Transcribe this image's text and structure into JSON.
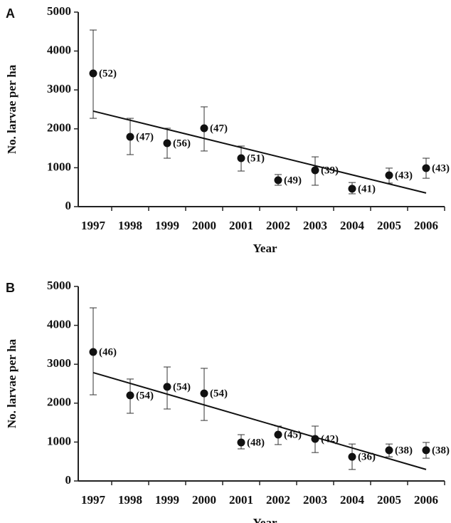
{
  "chart_data": [
    {
      "type": "errorbar",
      "panel_label": "A",
      "y_label": "No. larvae per ha",
      "x_label": "Year",
      "categories": [
        "1997",
        "1998",
        "1999",
        "2000",
        "2001",
        "2002",
        "2003",
        "2004",
        "2005",
        "2006"
      ],
      "values": [
        3425,
        1795,
        1630,
        2015,
        1245,
        680,
        935,
        460,
        805,
        990
      ],
      "lower": [
        2270,
        1337,
        1245,
        1430,
        915,
        550,
        550,
        330,
        605,
        730
      ],
      "upper": [
        4540,
        2270,
        2015,
        2565,
        1557,
        825,
        1280,
        620,
        990,
        1245
      ],
      "n_labels": [
        "(52)",
        "(47)",
        "(56)",
        "(47)",
        "(51)",
        "(49)",
        "(39)",
        "(41)",
        "(43)",
        "(43)"
      ],
      "trendline": [
        2455,
        350
      ],
      "color": "#111111",
      "ylim": [
        0,
        5000
      ],
      "yticks": [
        0,
        1000,
        2000,
        3000,
        4000,
        5000
      ]
    },
    {
      "type": "errorbar",
      "panel_label": "B",
      "y_label": "No. larvae per ha",
      "x_label": "Year",
      "categories": [
        "1997",
        "1998",
        "1999",
        "2000",
        "2001",
        "2002",
        "2003",
        "2004",
        "2005",
        "2006"
      ],
      "values": [
        3315,
        2200,
        2420,
        2250,
        990,
        1190,
        1080,
        620,
        790,
        790
      ],
      "lower": [
        2215,
        1740,
        1850,
        1555,
        825,
        935,
        730,
        295,
        620,
        585
      ],
      "upper": [
        4450,
        2620,
        2930,
        2895,
        1190,
        1410,
        1410,
        950,
        950,
        990
      ],
      "n_labels": [
        "(46)",
        "(54)",
        "(54)",
        "(54)",
        "(48)",
        "(45)",
        "(42)",
        "(36)",
        "(38)",
        "(38)"
      ],
      "trendline": [
        2785,
        295
      ],
      "color": "#111111",
      "ylim": [
        0,
        5000
      ],
      "yticks": [
        0,
        1000,
        2000,
        3000,
        4000,
        5000
      ]
    }
  ]
}
